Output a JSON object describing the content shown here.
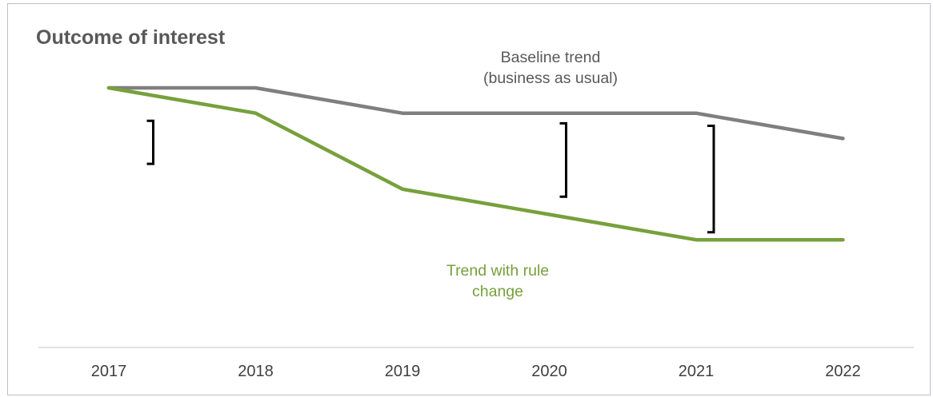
{
  "chart_data": {
    "type": "line",
    "title": "Outcome of interest",
    "categories": [
      "2017",
      "2018",
      "2019",
      "2020",
      "2021",
      "2022"
    ],
    "ylim": [
      0,
      100
    ],
    "grid": false,
    "legend": "none",
    "series": [
      {
        "name": "Baseline trend (business as usual)",
        "label_lines": [
          "Baseline trend",
          "(business as usual)"
        ],
        "color": "#7f7f7f",
        "values": [
          100,
          100,
          90,
          90,
          90,
          80
        ]
      },
      {
        "name": "Trend with rule change",
        "label_lines": [
          "Trend with rule",
          "change"
        ],
        "color": "#77a03c",
        "values": [
          100,
          90,
          60,
          50,
          40,
          40
        ]
      }
    ],
    "gap_brackets": [
      {
        "x": "2018",
        "from": 87,
        "to": 70
      },
      {
        "x": "2020",
        "from": 86,
        "to": 57
      },
      {
        "x": "2021",
        "from": 85,
        "to": 43
      }
    ],
    "colors": {
      "axis": "#d9d9d9",
      "bracket": "#000000",
      "frame": "#bfbfc6",
      "ticks": "#404040"
    }
  }
}
